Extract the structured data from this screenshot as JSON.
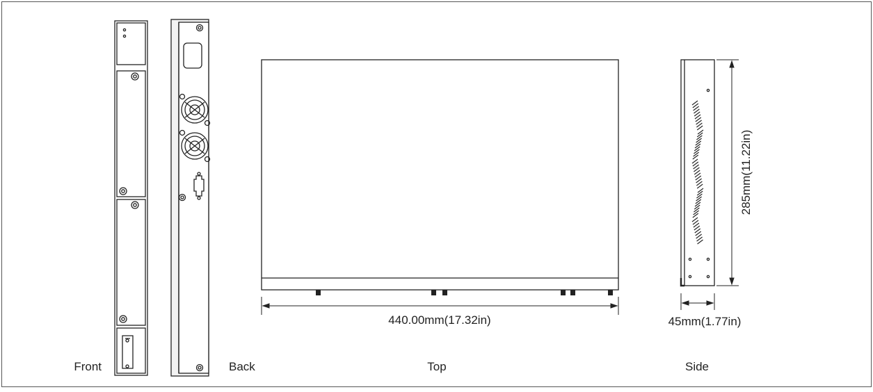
{
  "views": {
    "front": "Front",
    "back": "Back",
    "top": "Top",
    "side": "Side"
  },
  "dimensions": {
    "width": "440.00mm(17.32in)",
    "depth": "285mm(11.22in)",
    "height": "45mm(1.77in)"
  },
  "colors": {
    "stroke": "#222222",
    "fill": "#ffffff",
    "frame": "#555555"
  }
}
